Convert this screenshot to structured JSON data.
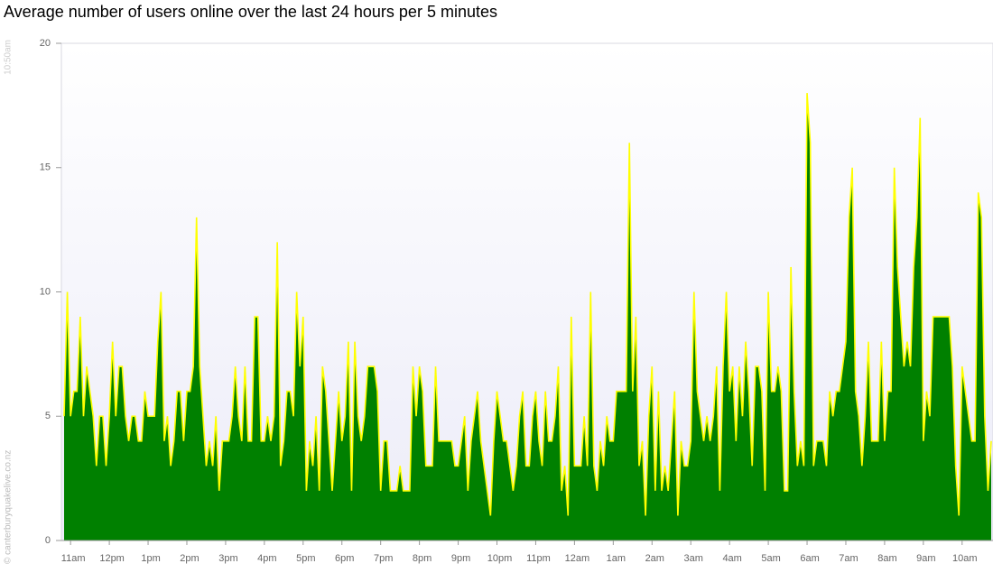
{
  "chart_data": {
    "type": "area",
    "title": "Average number of users online over the last 24 hours per 5 minutes",
    "side_label": "10:50am",
    "credit": "© canterburyquakelive.co.nz",
    "color": "#008000",
    "line_color": "#ffff00",
    "ylim": [
      0,
      20
    ],
    "yticks": [
      0,
      5,
      10,
      15,
      20
    ],
    "categories": [
      null,
      null,
      "11am",
      null,
      null,
      null,
      null,
      null,
      null,
      null,
      null,
      null,
      null,
      null,
      "12pm",
      null,
      null,
      null,
      null,
      null,
      null,
      null,
      null,
      null,
      null,
      null,
      "1pm",
      null,
      null,
      null,
      null,
      null,
      null,
      null,
      null,
      null,
      null,
      null,
      "2pm",
      null,
      null,
      null,
      null,
      null,
      null,
      null,
      null,
      null,
      null,
      null,
      "3pm",
      null,
      null,
      null,
      null,
      null,
      null,
      null,
      null,
      null,
      null,
      null,
      "4pm",
      null,
      null,
      null,
      null,
      null,
      null,
      null,
      null,
      null,
      null,
      null,
      "5pm",
      null,
      null,
      null,
      null,
      null,
      null,
      null,
      null,
      null,
      null,
      null,
      "6pm",
      null,
      null,
      null,
      null,
      null,
      null,
      null,
      null,
      null,
      null,
      null,
      "7pm",
      null,
      null,
      null,
      null,
      null,
      null,
      null,
      null,
      null,
      null,
      null,
      "8pm",
      null,
      null,
      null,
      null,
      null,
      null,
      null,
      null,
      null,
      null,
      null,
      "9pm",
      null,
      null,
      null,
      null,
      null,
      null,
      null,
      null,
      null,
      null,
      null,
      "10pm",
      null,
      null,
      null,
      null,
      null,
      null,
      null,
      null,
      null,
      null,
      null,
      "11pm",
      null,
      null,
      null,
      null,
      null,
      null,
      null,
      null,
      null,
      null,
      null,
      "12am",
      null,
      null,
      null,
      null,
      null,
      null,
      null,
      null,
      null,
      null,
      null,
      "1am",
      null,
      null,
      null,
      null,
      null,
      null,
      null,
      null,
      null,
      null,
      null,
      "2am",
      null,
      null,
      null,
      null,
      null,
      null,
      null,
      null,
      null,
      null,
      null,
      "3am",
      null,
      null,
      null,
      null,
      null,
      null,
      null,
      null,
      null,
      null,
      null,
      "4am",
      null,
      null,
      null,
      null,
      null,
      null,
      null,
      null,
      null,
      null,
      null,
      "5am",
      null,
      null,
      null,
      null,
      null,
      null,
      null,
      null,
      null,
      null,
      null,
      "6am",
      null,
      null,
      null,
      null,
      null,
      null,
      null,
      null,
      null,
      null,
      null,
      "7am",
      null,
      null,
      null,
      null,
      null,
      null,
      null,
      null,
      null,
      null,
      null,
      "8am",
      null,
      null,
      null,
      null,
      null,
      null,
      null,
      null,
      null,
      null,
      null,
      "9am",
      null,
      null,
      null,
      null,
      null,
      null,
      null,
      null,
      null,
      null,
      null,
      "10am",
      null,
      null,
      null,
      null,
      null,
      null,
      null,
      null,
      null
    ],
    "values": [
      5,
      10,
      5,
      6,
      6,
      9,
      5,
      7,
      6,
      5,
      3,
      5,
      5,
      3,
      5,
      8,
      5,
      7,
      7,
      5,
      4,
      5,
      5,
      4,
      4,
      6,
      5,
      5,
      5,
      8,
      10,
      4,
      5,
      3,
      4,
      6,
      6,
      4,
      6,
      6,
      7,
      13,
      7,
      5,
      3,
      4,
      3,
      5,
      2,
      4,
      4,
      4,
      5,
      7,
      5,
      4,
      7,
      4,
      4,
      9,
      9,
      4,
      4,
      5,
      4,
      5,
      12,
      3,
      4,
      6,
      6,
      5,
      10,
      7,
      9,
      2,
      4,
      3,
      5,
      2,
      7,
      6,
      4,
      2,
      4,
      6,
      4,
      5,
      8,
      2,
      8,
      5,
      4,
      5,
      7,
      7,
      7,
      6,
      2,
      4,
      4,
      2,
      2,
      2,
      3,
      2,
      2,
      2,
      7,
      5,
      7,
      6,
      3,
      3,
      3,
      7,
      4,
      4,
      4,
      4,
      4,
      3,
      3,
      4,
      5,
      2,
      4,
      5,
      6,
      4,
      3,
      2,
      1,
      4,
      6,
      5,
      4,
      4,
      3,
      2,
      3,
      5,
      6,
      3,
      3,
      5,
      6,
      4,
      3,
      6,
      4,
      4,
      5,
      7,
      2,
      3,
      1,
      9,
      3,
      3,
      3,
      5,
      3,
      10,
      3,
      2,
      4,
      3,
      5,
      4,
      4,
      6,
      6,
      6,
      6,
      16,
      6,
      9,
      3,
      4,
      1,
      5,
      7,
      2,
      6,
      2,
      3,
      2,
      4,
      6,
      1,
      4,
      3,
      3,
      4,
      10,
      6,
      5,
      4,
      5,
      4,
      5,
      7,
      2,
      7,
      10,
      6,
      7,
      4,
      7,
      5,
      8,
      6,
      3,
      7,
      7,
      6,
      2,
      10,
      6,
      6,
      7,
      6,
      2,
      2,
      11,
      6,
      3,
      4,
      3,
      18,
      16,
      3,
      4,
      4,
      4,
      3,
      6,
      5,
      6,
      6,
      7,
      8,
      13,
      15,
      6,
      5,
      3,
      5,
      8,
      4,
      4,
      4,
      8,
      4,
      6,
      6,
      15,
      11,
      9,
      7,
      8,
      7,
      11,
      13,
      17,
      4,
      6,
      5,
      9,
      9,
      9,
      9,
      9,
      9,
      7,
      3,
      1,
      7,
      6,
      5,
      4,
      4,
      14,
      13,
      5,
      2,
      4
    ]
  }
}
